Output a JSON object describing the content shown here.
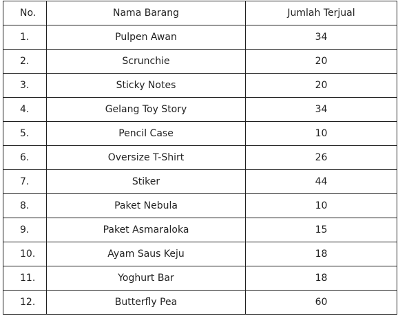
{
  "table": {
    "headers": {
      "no": "No.",
      "name": "Nama Barang",
      "qty": "Jumlah Terjual"
    },
    "rows": [
      {
        "no": "1.",
        "name": "Pulpen Awan",
        "qty": "34"
      },
      {
        "no": "2.",
        "name": "Scrunchie",
        "qty": "20"
      },
      {
        "no": "3.",
        "name": "Sticky Notes",
        "qty": "20"
      },
      {
        "no": "4.",
        "name": "Gelang Toy Story",
        "qty": "34"
      },
      {
        "no": "5.",
        "name": "Pencil Case",
        "qty": "10"
      },
      {
        "no": "6.",
        "name": "Oversize T-Shirt",
        "qty": "26"
      },
      {
        "no": "7.",
        "name": "Stiker",
        "qty": "44"
      },
      {
        "no": "8.",
        "name": "Paket Nebula",
        "qty": "10"
      },
      {
        "no": "9.",
        "name": "Paket Asmaraloka",
        "qty": "15"
      },
      {
        "no": "10.",
        "name": "Ayam Saus Keju",
        "qty": "18"
      },
      {
        "no": "11.",
        "name": "Yoghurt Bar",
        "qty": "18"
      },
      {
        "no": "12.",
        "name": "Butterfly Pea",
        "qty": "60"
      }
    ]
  }
}
